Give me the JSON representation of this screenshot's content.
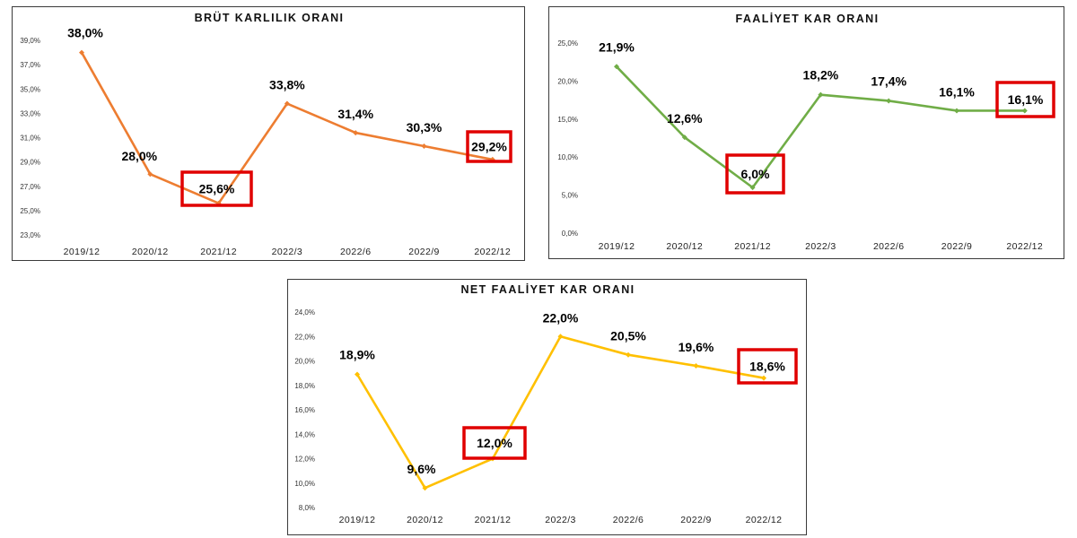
{
  "chart_data": [
    {
      "type": "line",
      "title": "BRÜT KARLILIK ORANI",
      "categories": [
        "2019/12",
        "2020/12",
        "2021/12",
        "2022/3",
        "2022/6",
        "2022/9",
        "2022/12"
      ],
      "series": [
        {
          "values": [
            38.0,
            28.0,
            25.6,
            33.8,
            31.4,
            30.3,
            29.2
          ],
          "labels": [
            "38,0%",
            "28,0%",
            "25,6%",
            "33,8%",
            "31,4%",
            "30,3%",
            "29,2%"
          ]
        }
      ],
      "ylim": [
        23.0,
        39.0
      ],
      "yticks": [
        "23,0%",
        "25,0%",
        "27,0%",
        "29,0%",
        "31,0%",
        "33,0%",
        "35,0%",
        "37,0%",
        "39,0%"
      ],
      "color": "#ed7d31",
      "highlighted": [
        "2021/12",
        "2022/12"
      ],
      "grid": false
    },
    {
      "type": "line",
      "title": "FAALİYET KAR ORANI",
      "categories": [
        "2019/12",
        "2020/12",
        "2021/12",
        "2022/3",
        "2022/6",
        "2022/9",
        "2022/12"
      ],
      "series": [
        {
          "values": [
            21.9,
            12.6,
            6.0,
            18.2,
            17.4,
            16.1,
            16.1
          ],
          "labels": [
            "21,9%",
            "12,6%",
            "6,0%",
            "18,2%",
            "17,4%",
            "16,1%",
            "16,1%"
          ]
        }
      ],
      "ylim": [
        0.0,
        25.0
      ],
      "yticks": [
        "0,0%",
        "5,0%",
        "10,0%",
        "15,0%",
        "20,0%",
        "25,0%"
      ],
      "color": "#70ad47",
      "highlighted": [
        "2021/12",
        "2022/12"
      ],
      "grid": false
    },
    {
      "type": "line",
      "title": "NET FAALİYET KAR ORANI",
      "categories": [
        "2019/12",
        "2020/12",
        "2021/12",
        "2022/3",
        "2022/6",
        "2022/9",
        "2022/12"
      ],
      "series": [
        {
          "values": [
            18.9,
            9.6,
            12.0,
            22.0,
            20.5,
            19.6,
            18.6
          ],
          "labels": [
            "18,9%",
            "9,6%",
            "12,0%",
            "22,0%",
            "20,5%",
            "19,6%",
            "18,6%"
          ]
        }
      ],
      "ylim": [
        8.0,
        24.0
      ],
      "yticks": [
        "8,0%",
        "10,0%",
        "12,0%",
        "14,0%",
        "16,0%",
        "18,0%",
        "20,0%",
        "22,0%",
        "24,0%"
      ],
      "color": "#ffc000",
      "highlighted": [
        "2021/12",
        "2022/12"
      ],
      "grid": false
    }
  ]
}
